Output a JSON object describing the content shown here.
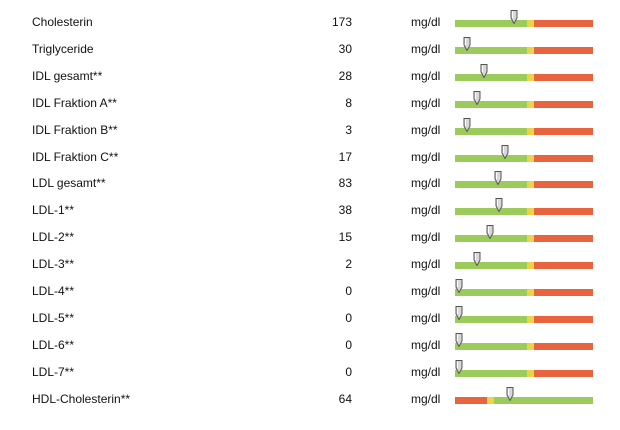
{
  "colors": {
    "green": "#9bcb5b",
    "yellow": "#e8d548",
    "red": "#e8643e",
    "marker_fill": "#d8d8d8",
    "marker_stroke": "#555555"
  },
  "rows": [
    {
      "name": "Cholesterin",
      "value": "173",
      "unit": "mg/dl",
      "bar": "normal",
      "marker": 0.43
    },
    {
      "name": "Triglyceride",
      "value": "30",
      "unit": "mg/dl",
      "bar": "normal",
      "marker": 0.09
    },
    {
      "name": "IDL gesamt**",
      "value": "28",
      "unit": "mg/dl",
      "bar": "normal",
      "marker": 0.21
    },
    {
      "name": "IDL Fraktion A**",
      "value": "8",
      "unit": "mg/dl",
      "bar": "normal",
      "marker": 0.16
    },
    {
      "name": "IDL Fraktion B**",
      "value": "3",
      "unit": "mg/dl",
      "bar": "normal",
      "marker": 0.09
    },
    {
      "name": "IDL Fraktion C**",
      "value": "17",
      "unit": "mg/dl",
      "bar": "normal",
      "marker": 0.36
    },
    {
      "name": "LDL gesamt**",
      "value": "83",
      "unit": "mg/dl",
      "bar": "normal",
      "marker": 0.31
    },
    {
      "name": "LDL-1**",
      "value": "38",
      "unit": "mg/dl",
      "bar": "normal",
      "marker": 0.32
    },
    {
      "name": "LDL-2**",
      "value": "15",
      "unit": "mg/dl",
      "bar": "normal",
      "marker": 0.25
    },
    {
      "name": "LDL-3**",
      "value": "2",
      "unit": "mg/dl",
      "bar": "normal",
      "marker": 0.16
    },
    {
      "name": "LDL-4**",
      "value": "0",
      "unit": "mg/dl",
      "bar": "normal",
      "marker": 0.0
    },
    {
      "name": "LDL-5**",
      "value": "0",
      "unit": "mg/dl",
      "bar": "normal",
      "marker": 0.0
    },
    {
      "name": "LDL-6**",
      "value": "0",
      "unit": "mg/dl",
      "bar": "normal",
      "marker": 0.0
    },
    {
      "name": "LDL-7**",
      "value": "0",
      "unit": "mg/dl",
      "bar": "normal",
      "marker": 0.0
    },
    {
      "name": "HDL-Cholesterin**",
      "value": "64",
      "unit": "mg/dl",
      "bar": "hdl",
      "marker": 0.4
    }
  ]
}
